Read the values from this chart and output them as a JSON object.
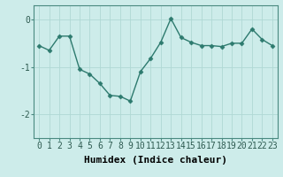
{
  "x": [
    0,
    1,
    2,
    3,
    4,
    5,
    6,
    7,
    8,
    9,
    10,
    11,
    12,
    13,
    14,
    15,
    16,
    17,
    18,
    19,
    20,
    21,
    22,
    23
  ],
  "y": [
    -0.55,
    -0.65,
    -0.35,
    -0.35,
    -1.05,
    -1.15,
    -1.35,
    -1.6,
    -1.62,
    -1.72,
    -1.1,
    -0.82,
    -0.48,
    0.02,
    -0.38,
    -0.48,
    -0.55,
    -0.55,
    -0.57,
    -0.5,
    -0.5,
    -0.2,
    -0.42,
    -0.55
  ],
  "line_color": "#2d7a6e",
  "marker": "D",
  "marker_size": 2.5,
  "bg_color": "#cdecea",
  "grid_color": "#b0d8d4",
  "xlabel": "Humidex (Indice chaleur)",
  "xlabel_fontsize": 8,
  "tick_fontsize": 7,
  "ylim": [
    -2.5,
    0.3
  ],
  "yticks": [
    0,
    -1,
    -2
  ],
  "xlim": [
    -0.5,
    23.5
  ],
  "spine_color": "#4a8a80",
  "linewidth": 1.0
}
